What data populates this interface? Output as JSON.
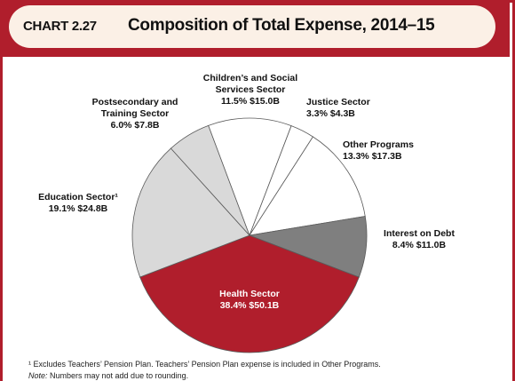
{
  "header": {
    "chart_number": "CHART 2.27",
    "title": "Composition of Total Expense, 2014–15"
  },
  "chart_data": {
    "type": "pie",
    "title": "Composition of Total Expense, 2014–15",
    "slices": [
      {
        "name": "Health Sector",
        "label_lines": [
          "Health Sector",
          "38.4%  $50.1B"
        ],
        "percent": 38.4,
        "value": 50.1,
        "color": "#b01e2c"
      },
      {
        "name": "Education Sector",
        "label_lines": [
          "Education Sector¹",
          "19.1%  $24.8B"
        ],
        "percent": 19.1,
        "value": 24.8,
        "color": "#d9d9d9"
      },
      {
        "name": "Postsecondary and Training Sector",
        "label_lines": [
          "Postsecondary and",
          "Training Sector",
          "6.0%  $7.8B"
        ],
        "percent": 6.0,
        "value": 7.8,
        "color": "#d9d9d9"
      },
      {
        "name": "Children’s and Social Services Sector",
        "label_lines": [
          "Children’s and Social",
          "Services Sector",
          "11.5%  $15.0B"
        ],
        "percent": 11.5,
        "value": 15.0,
        "color": "#ffffff"
      },
      {
        "name": "Justice Sector",
        "label_lines": [
          "Justice Sector",
          "3.3%  $4.3B"
        ],
        "percent": 3.3,
        "value": 4.3,
        "color": "#ffffff"
      },
      {
        "name": "Other Programs",
        "label_lines": [
          "Other Programs",
          "13.3%  $17.3B"
        ],
        "percent": 13.3,
        "value": 17.3,
        "color": "#ffffff"
      },
      {
        "name": "Interest on Debt",
        "label_lines": [
          "Interest on Debt",
          "8.4%  $11.0B"
        ],
        "percent": 8.4,
        "value": 11.0,
        "color": "#7f7f7f"
      }
    ],
    "unit": "$B"
  },
  "footnotes": {
    "note1": "¹ Excludes Teachers’ Pension Plan. Teachers’ Pension Plan expense is included in Other Programs.",
    "note2_label": "Note:",
    "note2_text": " Numbers may not add due to rounding."
  }
}
